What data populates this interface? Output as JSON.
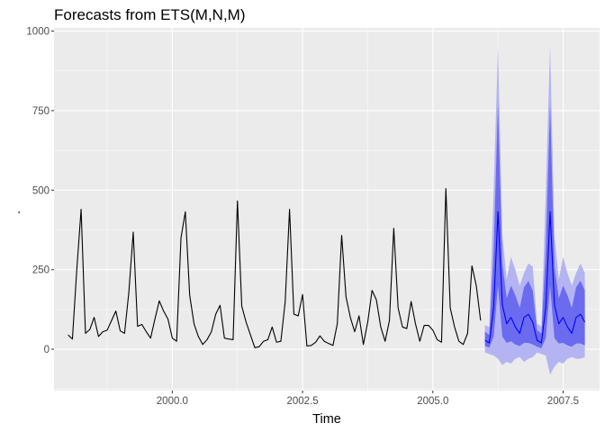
{
  "chart_data": {
    "type": "line",
    "title": "Forecasts from ETS(M,N,M)",
    "xlabel": "Time",
    "ylabel": ".",
    "xlim": [
      1997.73,
      2008.2
    ],
    "ylim": [
      -130,
      1010
    ],
    "x_ticks": [
      2000.0,
      2002.5,
      2005.0,
      2007.5
    ],
    "x_tick_labels": [
      "2000.0",
      "2002.5",
      "2005.0",
      "2007.5"
    ],
    "y_ticks": [
      0,
      250,
      500,
      750,
      1000
    ],
    "y_tick_labels": [
      "0",
      "250",
      "500",
      "750",
      "1000"
    ],
    "grid": true,
    "legend": "none",
    "colors": {
      "panel_bg": "#ebebeb",
      "grid": "#ffffff",
      "observed": "#000000",
      "forecast": "#0000ff",
      "band_80": "#6b6bf0",
      "band_95": "#b4b4f3"
    },
    "series": [
      {
        "role": "observed",
        "start": 1998.0,
        "frequency": 12,
        "values": [
          45,
          32,
          250,
          440,
          50,
          62,
          100,
          40,
          55,
          60,
          90,
          120,
          58,
          50,
          180,
          368,
          72,
          78,
          55,
          35,
          95,
          152,
          120,
          95,
          35,
          25,
          350,
          432,
          170,
          80,
          40,
          15,
          30,
          55,
          110,
          138,
          35,
          32,
          30,
          466,
          135,
          85,
          45,
          5,
          8,
          25,
          30,
          70,
          22,
          25,
          150,
          440,
          110,
          105,
          172,
          10,
          12,
          22,
          42,
          25,
          18,
          12,
          80,
          358,
          165,
          100,
          55,
          105,
          15,
          85,
          185,
          155,
          70,
          25,
          90,
          380,
          130,
          70,
          65,
          150,
          80,
          25,
          75,
          75,
          60,
          30,
          22,
          505,
          130,
          70,
          25,
          15,
          50,
          262,
          200,
          90
        ]
      },
      {
        "role": "forecast",
        "start": 2006.0,
        "frequency": 12,
        "values": [
          28,
          20,
          130,
          432,
          140,
          80,
          100,
          70,
          50,
          100,
          110,
          85,
          28,
          20,
          130,
          432,
          140,
          80,
          100,
          70,
          50,
          100,
          110,
          85
        ],
        "lo80": [
          10,
          5,
          40,
          200,
          40,
          20,
          25,
          15,
          10,
          20,
          20,
          15,
          8,
          3,
          35,
          200,
          35,
          18,
          20,
          12,
          8,
          18,
          18,
          12
        ],
        "hi80": [
          55,
          45,
          310,
          770,
          270,
          160,
          200,
          170,
          130,
          195,
          215,
          185,
          60,
          50,
          310,
          770,
          260,
          160,
          200,
          170,
          130,
          195,
          215,
          185
        ],
        "lo95": [
          -10,
          -15,
          -20,
          -30,
          -50,
          -40,
          -45,
          -30,
          -25,
          -40,
          -30,
          -25,
          -10,
          -15,
          -20,
          -80,
          -55,
          -40,
          -45,
          -30,
          -25,
          -30,
          -30,
          -25
        ],
        "hi95": [
          75,
          70,
          500,
          950,
          360,
          220,
          290,
          250,
          200,
          240,
          270,
          260,
          80,
          72,
          490,
          955,
          360,
          220,
          290,
          240,
          200,
          240,
          270,
          240
        ]
      }
    ]
  }
}
